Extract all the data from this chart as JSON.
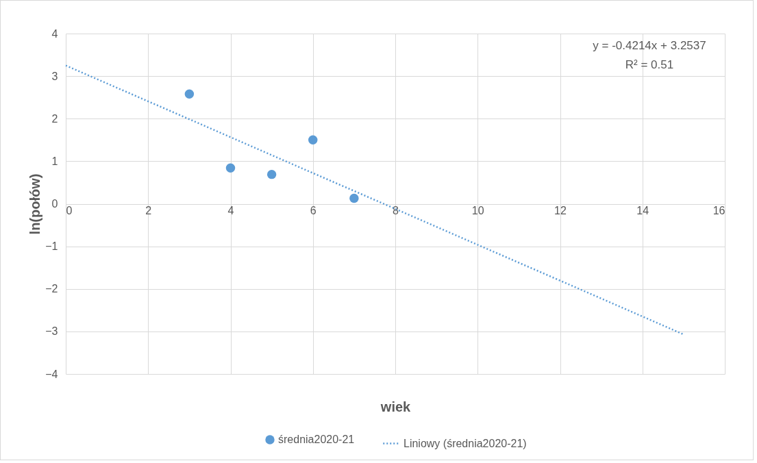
{
  "chart_data": {
    "type": "scatter",
    "xlabel": "wiek",
    "ylabel": "ln(połów)",
    "xlim": [
      0,
      16
    ],
    "xticks": [
      0,
      2,
      4,
      6,
      8,
      10,
      12,
      14,
      16
    ],
    "ylim": [
      -4,
      4
    ],
    "yticks": [
      -4,
      -3,
      -2,
      -1,
      0,
      1,
      2,
      3,
      4
    ],
    "grid": true,
    "legend": "bottom",
    "series": [
      {
        "name": "średnia2020-21",
        "marker": "circle",
        "color": "#5b9bd5",
        "x": [
          3,
          4,
          5,
          6,
          7
        ],
        "values": [
          2.58,
          0.84,
          0.69,
          1.5,
          0.13
        ]
      },
      {
        "name": "Liniowy (średnia2020-21)",
        "type": "line",
        "line_style": "dotted",
        "color": "#5b9bd5",
        "x": [
          0,
          15
        ],
        "values": [
          3.25,
          -3.07
        ]
      }
    ],
    "annotations": [
      "y = -0.4214x + 3.2537",
      "R² = 0.51"
    ]
  }
}
